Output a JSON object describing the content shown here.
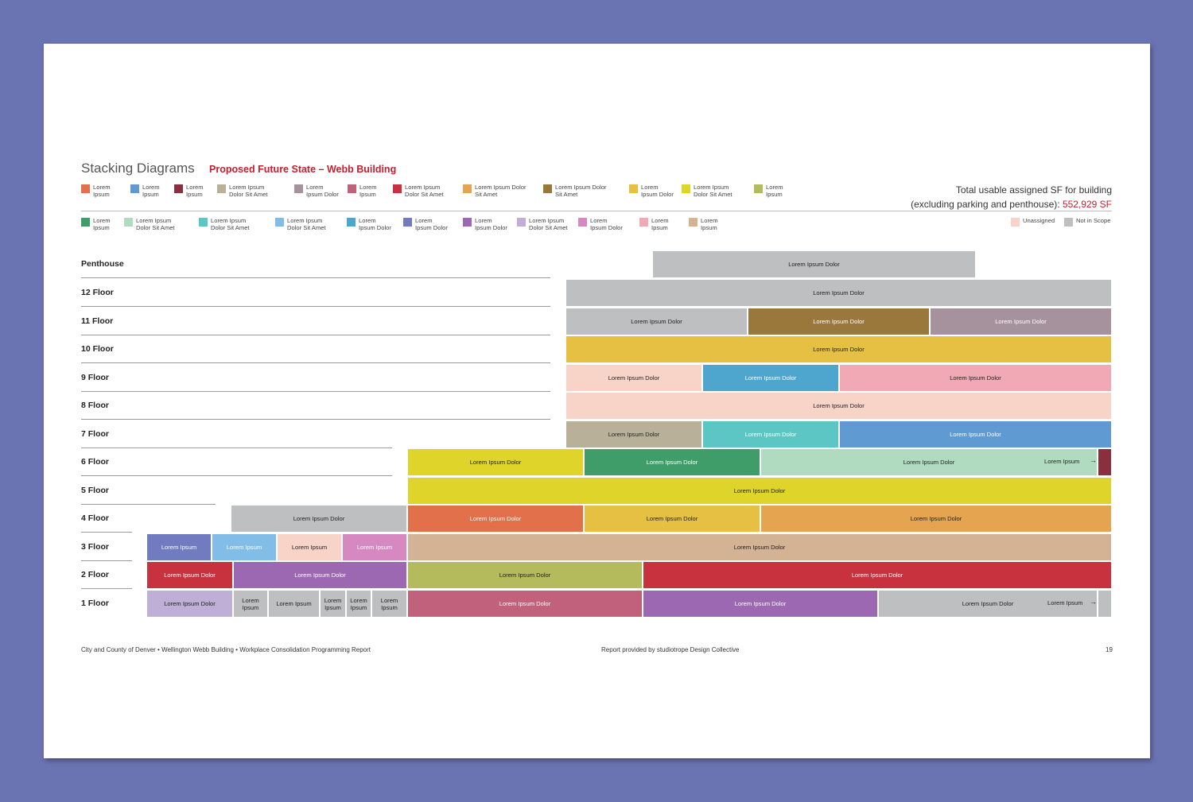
{
  "header": {
    "title": "Stacking Diagrams",
    "subtitle": "Proposed Future State – Webb Building",
    "total_line1": "Total usable assigned SF for building",
    "total_line2": "(excluding parking and penthouse):",
    "total_value": "552,929 SF"
  },
  "legend_row1": [
    {
      "label": "Lorem\nIpsum",
      "color": "#e2704a"
    },
    {
      "label": "Lorem\nIpsum",
      "color": "#5f9ad3"
    },
    {
      "label": "Lorem\nIpsum",
      "color": "#8a2f3e"
    },
    {
      "label": "Lorem Ipsum\nDolor Sit Amet",
      "color": "#b8b098"
    },
    {
      "label": "Lorem\nIpsum Dolor",
      "color": "#a5929c"
    },
    {
      "label": "Lorem\nIpsum",
      "color": "#c1617c"
    },
    {
      "label": "Lorem Ipsum\nDolor Sit Amet",
      "color": "#c8323f"
    },
    {
      "label": "Lorem Ipsum Dolor\nSit Amet",
      "color": "#e4a450"
    },
    {
      "label": "Lorem Ipsum Dolor\nSit Amet",
      "color": "#9a773a"
    },
    {
      "label": "Lorem\nIpsum Dolor",
      "color": "#e5c042"
    },
    {
      "label": "Lorem Ipsum\nDolor Sit Amet",
      "color": "#dfd42a"
    },
    {
      "label": "Lorem\nIpsum",
      "color": "#b3bb5c"
    }
  ],
  "legend_row2": [
    {
      "label": "Lorem\nIpsum",
      "color": "#3f9d6a"
    },
    {
      "label": "Lorem Ipsum\nDolor Sit Amet",
      "color": "#b1dbc0"
    },
    {
      "label": "Lorem Ipsum\nDolor Sit Amet",
      "color": "#5cc6c4"
    },
    {
      "label": "Lorem Ipsum\nDolor Sit Amet",
      "color": "#82bde8"
    },
    {
      "label": "Lorem\nIpsum Dolor",
      "color": "#4ea6cf"
    },
    {
      "label": "Lorem\nIpsum Dolor",
      "color": "#717bc0"
    },
    {
      "label": "Lorem\nIpsum Dolor",
      "color": "#9b68b1"
    },
    {
      "label": "Lorem Ipsum\nDolor Sit Amet",
      "color": "#bfaed6"
    },
    {
      "label": "Lorem\nIpsum Dolor",
      "color": "#d688c0"
    },
    {
      "label": "Lorem\nIpsum",
      "color": "#f2a9b6"
    },
    {
      "label": "Lorem\nIpsum",
      "color": "#d4b394"
    }
  ],
  "legend_right": [
    {
      "label": "Unassigned",
      "color": "#f8d4c8"
    },
    {
      "label": "Not in Scope",
      "color": "#bebfc1"
    }
  ],
  "floors": [
    {
      "label": "Penthouse",
      "blocks": [
        {
          "label": "Lorem Ipsum Dolor",
          "color": "#bebfc1"
        }
      ]
    },
    {
      "label": "12 Floor",
      "blocks": [
        {
          "label": "Lorem Ipsum Dolor",
          "color": "#bebfc1"
        }
      ]
    },
    {
      "label": "11 Floor",
      "blocks": [
        {
          "label": "Lorem Ipsum Dolor",
          "color": "#bebfc1"
        },
        {
          "label": "Lorem Ipsum Dolor",
          "color": "#9a773a"
        },
        {
          "label": "Lorem Ipsum Dolor",
          "color": "#a5929c"
        }
      ]
    },
    {
      "label": "10 Floor",
      "blocks": [
        {
          "label": "Lorem Ipsum Dolor",
          "color": "#e5c042"
        }
      ]
    },
    {
      "label": "9 Floor",
      "blocks": [
        {
          "label": "Lorem Ipsum Dolor",
          "color": "#f8d4c8"
        },
        {
          "label": "Lorem Ipsum Dolor",
          "color": "#4ea6cf"
        },
        {
          "label": "Lorem Ipsum Dolor",
          "color": "#f2a9b6"
        }
      ]
    },
    {
      "label": "8 Floor",
      "blocks": [
        {
          "label": "Lorem Ipsum Dolor",
          "color": "#f8d4c8"
        }
      ]
    },
    {
      "label": "7 Floor",
      "blocks": [
        {
          "label": "Lorem Ipsum Dolor",
          "color": "#b8b098"
        },
        {
          "label": "Lorem Ipsum Dolor",
          "color": "#5cc6c4"
        },
        {
          "label": "Lorem Ipsum Dolor",
          "color": "#5f9ad3"
        }
      ]
    },
    {
      "label": "6 Floor",
      "blocks": [
        {
          "label": "Lorem Ipsum Dolor",
          "color": "#dfd42a"
        },
        {
          "label": "Lorem Ipsum Dolor",
          "color": "#3f9d6a"
        },
        {
          "label": "Lorem Ipsum Dolor",
          "color": "#b1dbc0"
        },
        {
          "label": "",
          "color": "#8a2f3e"
        }
      ],
      "callout": "Lorem Ipsum"
    },
    {
      "label": "5 Floor",
      "blocks": [
        {
          "label": "Lorem Ipsum Dolor",
          "color": "#dfd42a"
        }
      ]
    },
    {
      "label": "4 Floor",
      "blocks": [
        {
          "label": "Lorem Ipsum Dolor",
          "color": "#bebfc1"
        },
        {
          "label": "Lorem Ipsum Dolor",
          "color": "#e2704a"
        },
        {
          "label": "Lorem Ipsum Dolor",
          "color": "#e5c042"
        },
        {
          "label": "Lorem Ipsum Dolor",
          "color": "#e4a450"
        }
      ]
    },
    {
      "label": "3 Floor",
      "blocks": [
        {
          "label": "Lorem Ipsum",
          "color": "#717bc0"
        },
        {
          "label": "Lorem Ipsum",
          "color": "#82bde8"
        },
        {
          "label": "Lorem Ipsum",
          "color": "#f8d4c8"
        },
        {
          "label": "Lorem Ipsum",
          "color": "#d688c0"
        },
        {
          "label": "Lorem Ipsum Dolor",
          "color": "#d4b394"
        }
      ]
    },
    {
      "label": "2 Floor",
      "blocks": [
        {
          "label": "Lorem Ipsum Dolor",
          "color": "#c8323f"
        },
        {
          "label": "Lorem Ipsum Dolor",
          "color": "#9b68b1"
        },
        {
          "label": "Lorem Ipsum Dolor",
          "color": "#b3bb5c"
        },
        {
          "label": "Lorem Ipsum Dolor",
          "color": "#c8323f"
        }
      ]
    },
    {
      "label": "1 Floor",
      "blocks": [
        {
          "label": "Lorem Ipsum Dolor",
          "color": "#bfaed6"
        },
        {
          "label": "Lorem\nIpsum",
          "color": "#bebfc1"
        },
        {
          "label": "Lorem Ipsum",
          "color": "#bebfc1"
        },
        {
          "label": "Lorem\nIpsum",
          "color": "#bebfc1"
        },
        {
          "label": "Lorem\nIpsum",
          "color": "#bebfc1"
        },
        {
          "label": "Lorem\nIpsum",
          "color": "#bebfc1"
        },
        {
          "label": "Lorem Ipsum Dolor",
          "color": "#c1617c"
        },
        {
          "label": "Lorem Ipsum Dolor",
          "color": "#9b68b1"
        },
        {
          "label": "Lorem Ipsum Dolor",
          "color": "#bebfc1"
        },
        {
          "label": "",
          "color": "#bebfc1"
        }
      ],
      "callout": "Lorem Ipsum"
    }
  ],
  "footer": {
    "left": "City and County of Denver  •  Wellington Webb Building  •  Workplace Consolidation Programming Report",
    "center": "Report provided by studiotrope Design Collective",
    "page": "19"
  }
}
